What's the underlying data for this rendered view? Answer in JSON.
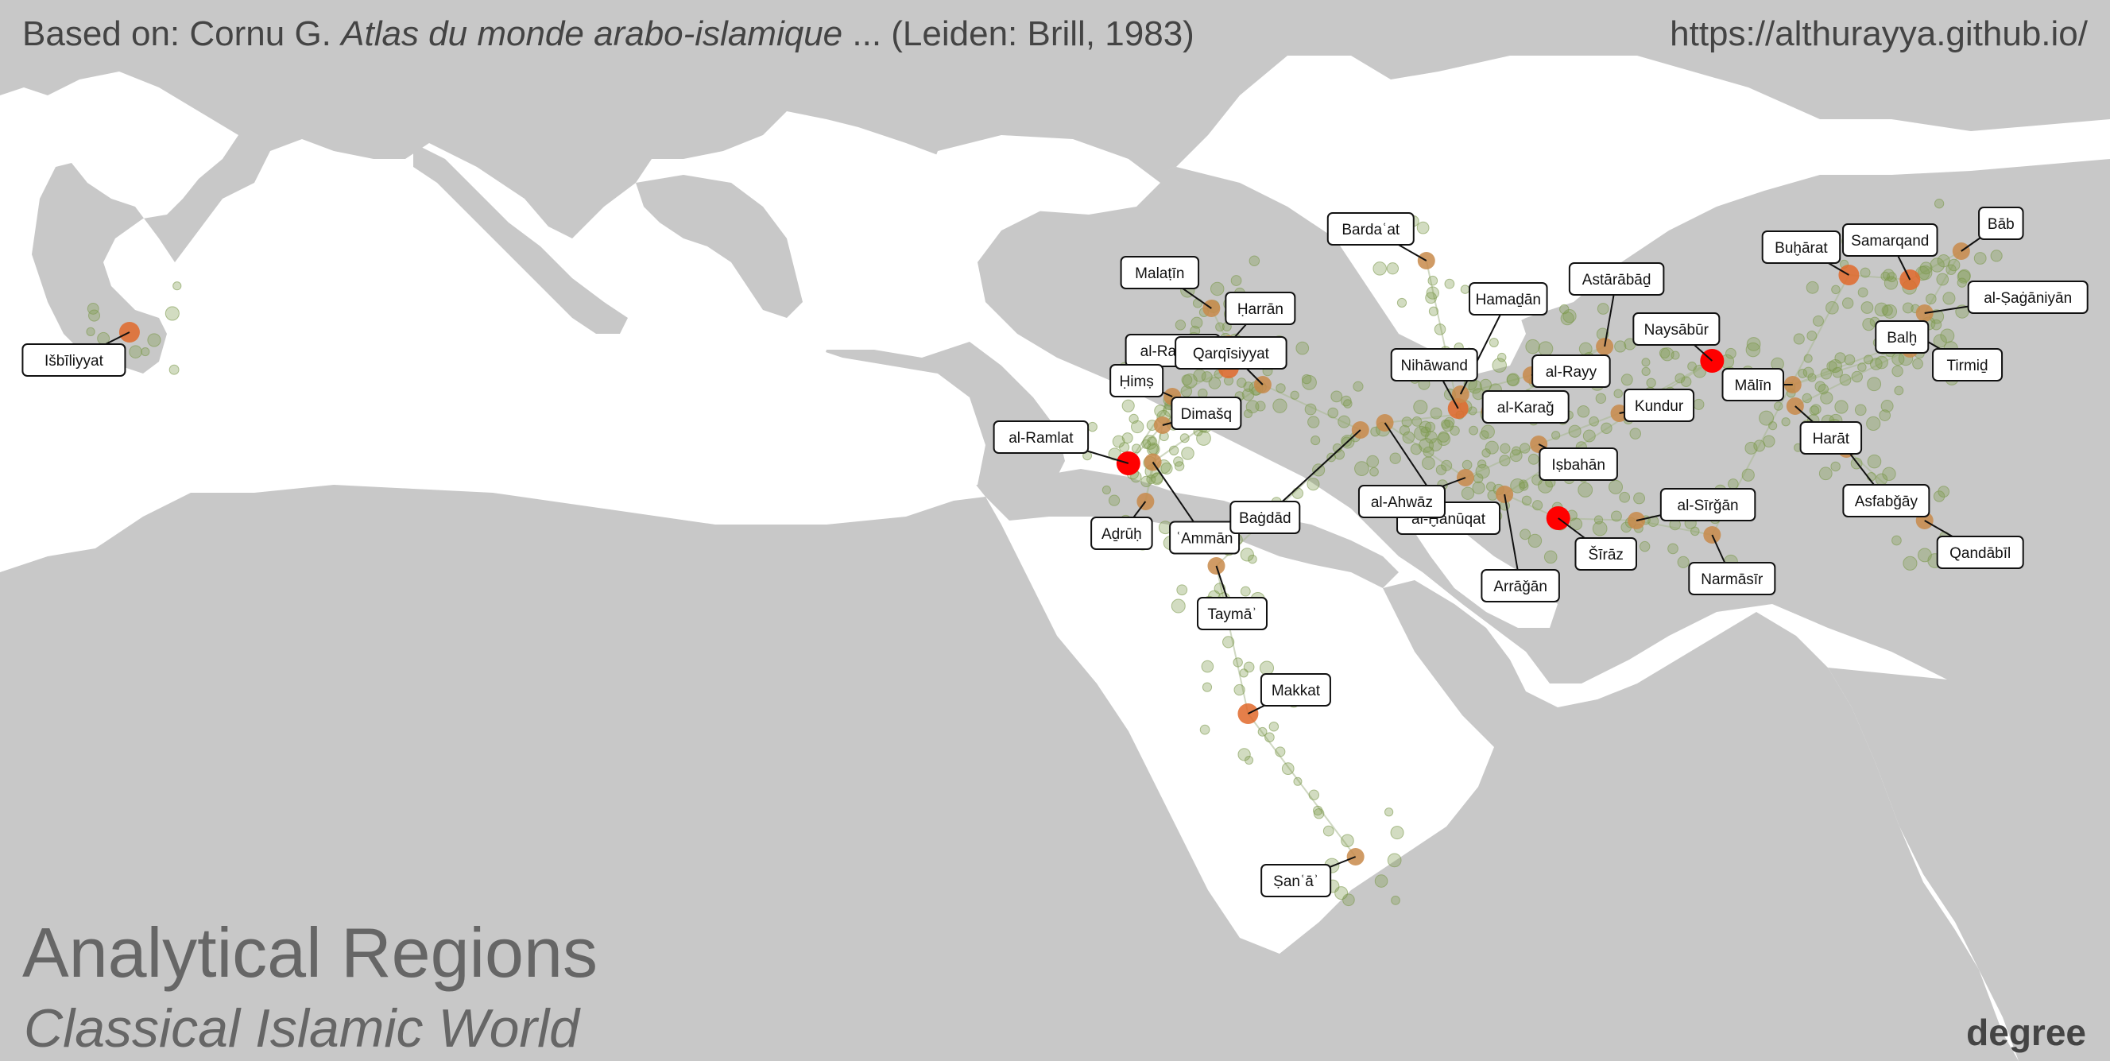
{
  "header": {
    "credit_prefix": "Based on: Cornu G. ",
    "credit_title": "Atlas du monde arabo-islamique",
    "credit_suffix": " ... (Leiden: Brill, 1983)",
    "url": "https://althurayya.github.io/"
  },
  "title": "Analytical Regions",
  "subtitle": "Classical Islamic World",
  "metric_label": "degree",
  "colors": {
    "land": "#c8c8c8",
    "sea": "#ffffff",
    "node_low": "#7d9a4e",
    "node_mid": "#c88a4a",
    "node_high": "#ff0000",
    "route": "#a8b890"
  },
  "map_extent": {
    "lon": [
      -10,
      72
    ],
    "lat": [
      10,
      48
    ]
  },
  "places": [
    {
      "name": "Išbīliyyat",
      "lon": -6.0,
      "lat": 37.4,
      "degree": "high"
    },
    {
      "name": "Malaṭīn",
      "lon": 38.3,
      "lat": 38.4,
      "degree": "mid"
    },
    {
      "name": "Ḥarrān",
      "lon": 39.0,
      "lat": 36.9,
      "degree": "mid"
    },
    {
      "name": "al-Raqqat",
      "lon": 39.0,
      "lat": 35.9,
      "degree": "high"
    },
    {
      "name": "Ḥimṣ",
      "lon": 36.7,
      "lat": 34.7,
      "degree": "mid"
    },
    {
      "name": "al-Ramlat",
      "lon": 34.9,
      "lat": 31.9,
      "degree": "max"
    },
    {
      "name": "Dimašq",
      "lon": 36.3,
      "lat": 33.5,
      "degree": "mid"
    },
    {
      "name": "Aḏrūḥ",
      "lon": 35.6,
      "lat": 30.3,
      "degree": "mid"
    },
    {
      "name": "ʿAmmān",
      "lon": 35.9,
      "lat": 31.95,
      "degree": "mid"
    },
    {
      "name": "Qarqīsiyyat",
      "lon": 40.4,
      "lat": 35.2,
      "degree": "mid"
    },
    {
      "name": "Baġdād",
      "lon": 44.4,
      "lat": 33.3,
      "degree": "mid"
    },
    {
      "name": "Taymāʾ",
      "lon": 38.5,
      "lat": 27.6,
      "degree": "mid"
    },
    {
      "name": "Makkat",
      "lon": 39.8,
      "lat": 21.4,
      "degree": "high"
    },
    {
      "name": "Ṣanʿāʾ",
      "lon": 44.2,
      "lat": 15.4,
      "degree": "mid"
    },
    {
      "name": "Bardaʿat",
      "lon": 47.1,
      "lat": 40.4,
      "degree": "mid"
    },
    {
      "name": "Nihāwand",
      "lon": 48.4,
      "lat": 34.2,
      "degree": "high"
    },
    {
      "name": "Hamaḏān",
      "lon": 48.5,
      "lat": 34.8,
      "degree": "mid"
    },
    {
      "name": "al-Rayy",
      "lon": 51.4,
      "lat": 35.6,
      "degree": "mid"
    },
    {
      "name": "Astārābāḏ",
      "lon": 54.4,
      "lat": 36.8,
      "degree": "mid"
    },
    {
      "name": "al-Karaǧ",
      "lon": 49.7,
      "lat": 34.1,
      "degree": "mid"
    },
    {
      "name": "al-Ḫānūqat",
      "lon": 45.4,
      "lat": 33.6,
      "degree": "mid"
    },
    {
      "name": "al-Ahwāz",
      "lon": 48.7,
      "lat": 31.3,
      "degree": "mid"
    },
    {
      "name": "Iṣbahān",
      "lon": 51.7,
      "lat": 32.7,
      "degree": "mid"
    },
    {
      "name": "Kundur",
      "lon": 55.0,
      "lat": 34.0,
      "degree": "mid"
    },
    {
      "name": "Naysābūr",
      "lon": 58.8,
      "lat": 36.2,
      "degree": "max"
    },
    {
      "name": "Arrāǧān",
      "lon": 50.3,
      "lat": 30.6,
      "degree": "mid"
    },
    {
      "name": "Šīrāz",
      "lon": 52.5,
      "lat": 29.6,
      "degree": "max"
    },
    {
      "name": "al-Sīrǧān",
      "lon": 55.7,
      "lat": 29.5,
      "degree": "mid"
    },
    {
      "name": "Narmāsīr",
      "lon": 58.8,
      "lat": 28.9,
      "degree": "mid"
    },
    {
      "name": "Buḫārat",
      "lon": 64.4,
      "lat": 39.8,
      "degree": "high"
    },
    {
      "name": "Samarqand",
      "lon": 66.9,
      "lat": 39.6,
      "degree": "high"
    },
    {
      "name": "Bāb",
      "lon": 69.0,
      "lat": 40.8,
      "degree": "mid"
    },
    {
      "name": "al-Ṣaġāniyān",
      "lon": 67.5,
      "lat": 38.2,
      "degree": "mid"
    },
    {
      "name": "Tirmiḏ",
      "lon": 67.3,
      "lat": 37.2,
      "degree": "mid"
    },
    {
      "name": "Mālīn",
      "lon": 62.1,
      "lat": 35.2,
      "degree": "mid"
    },
    {
      "name": "Balḫ",
      "lon": 66.9,
      "lat": 36.7,
      "degree": "mid"
    },
    {
      "name": "Harāt",
      "lon": 62.2,
      "lat": 34.3,
      "degree": "mid"
    },
    {
      "name": "Asfabǧāy",
      "lon": 64.3,
      "lat": 32.5,
      "degree": "mid"
    },
    {
      "name": "Qandābīl",
      "lon": 67.5,
      "lat": 29.5,
      "degree": "mid"
    }
  ]
}
